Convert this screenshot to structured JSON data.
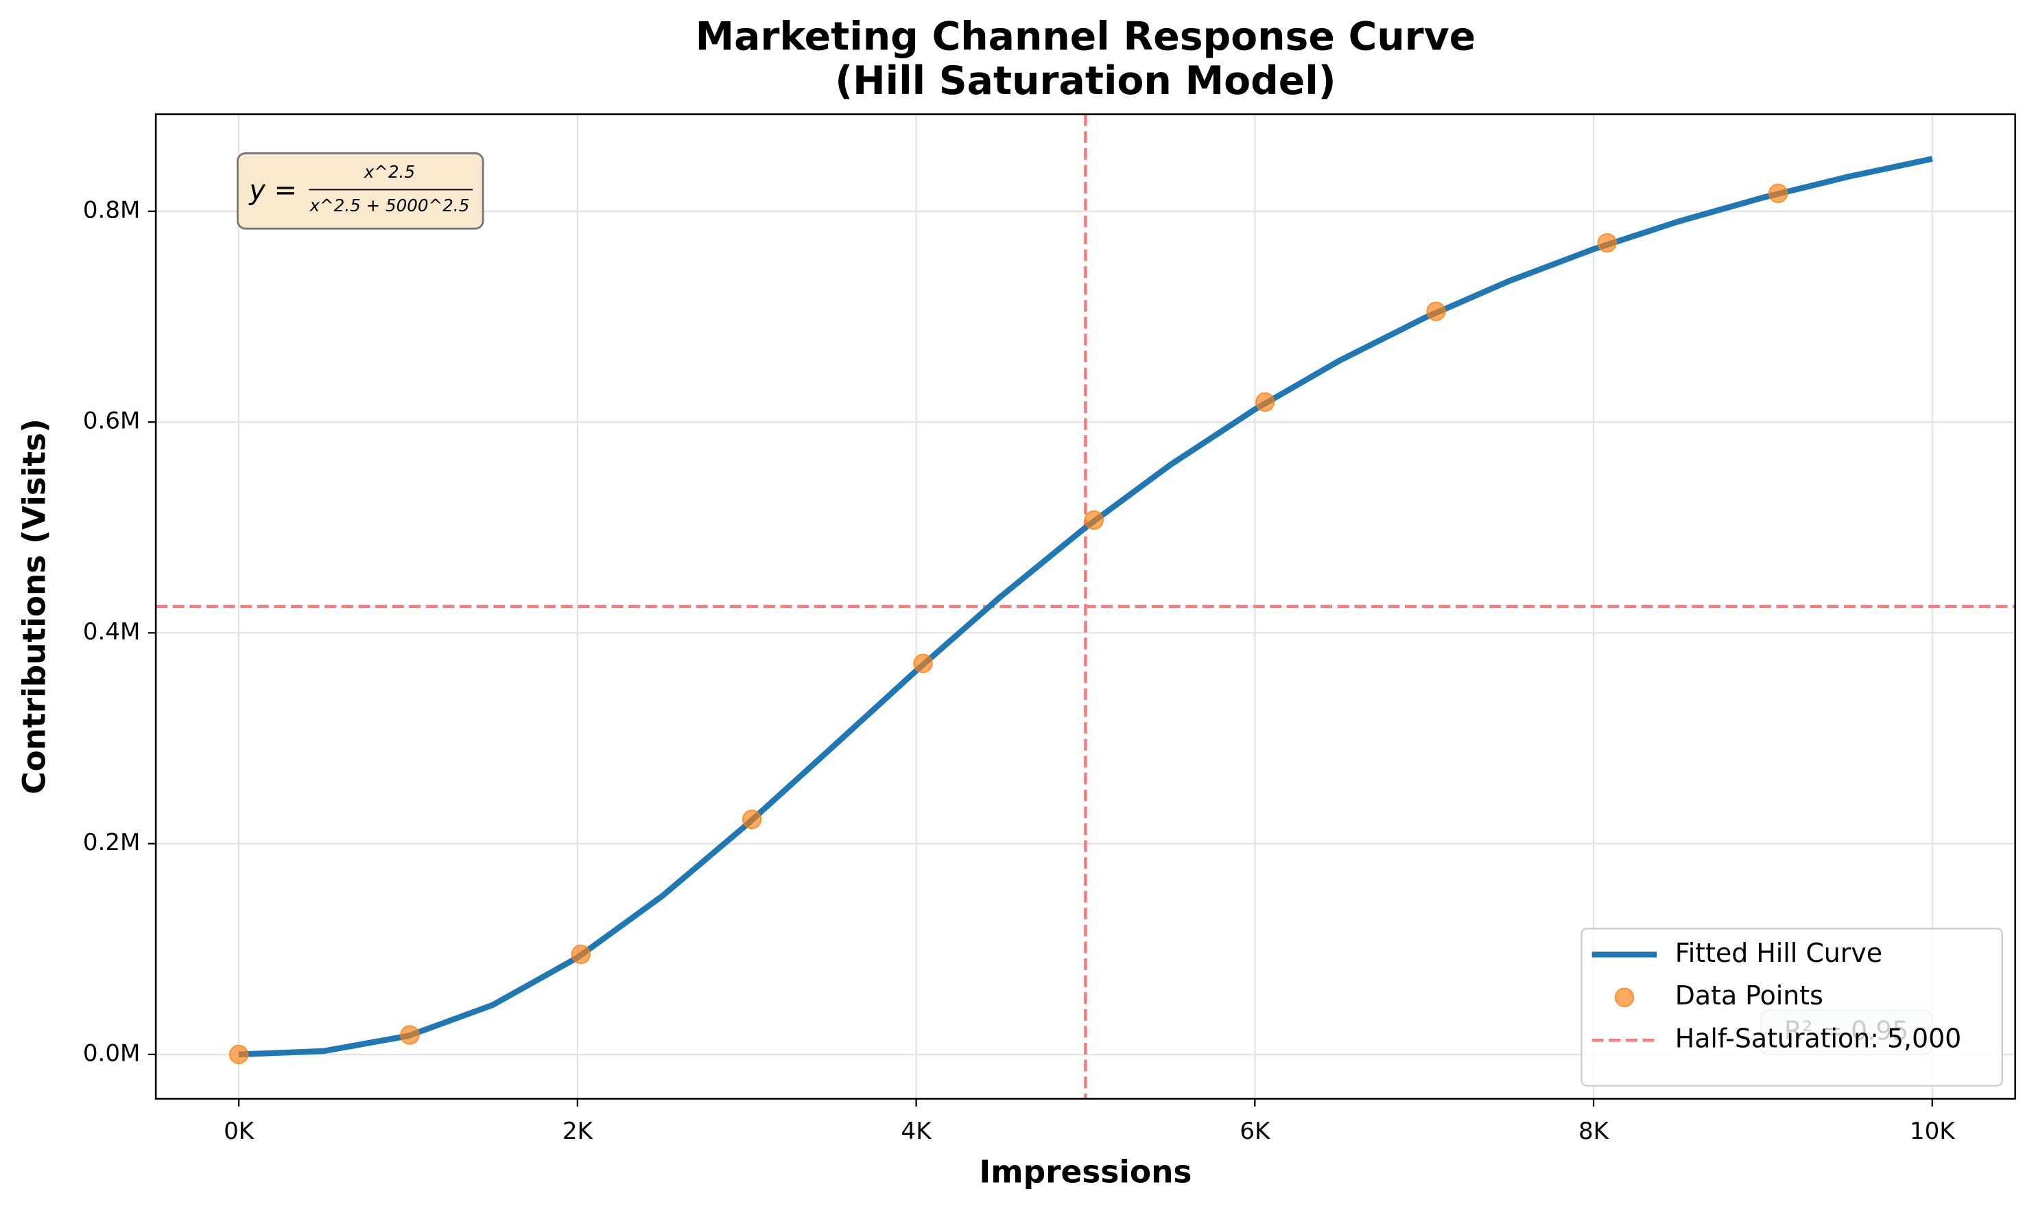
{
  "chart_data": {
    "type": "line",
    "title": [
      "Marketing Channel Response Curve",
      "(Hill Saturation Model)"
    ],
    "x_label": "Impressions",
    "y_label": "Contributions (Visits)",
    "xlim": [
      -490,
      10490
    ],
    "ylim": [
      -42000,
      892000
    ],
    "xticks": [
      {
        "value": 0,
        "label": "0K"
      },
      {
        "value": 2000,
        "label": "2K"
      },
      {
        "value": 4000,
        "label": "4K"
      },
      {
        "value": 6000,
        "label": "6K"
      },
      {
        "value": 8000,
        "label": "8K"
      },
      {
        "value": 10000,
        "label": "10K"
      }
    ],
    "yticks": [
      {
        "value": 0,
        "label": "0.0M"
      },
      {
        "value": 200000,
        "label": "0.2M"
      },
      {
        "value": 400000,
        "label": "0.4M"
      },
      {
        "value": 600000,
        "label": "0.6M"
      },
      {
        "value": 800000,
        "label": "0.8M"
      }
    ],
    "grid": true,
    "legend": "lower right",
    "series": [
      {
        "name": "Fitted Hill Curve",
        "type": "line",
        "color": "#1f77b4",
        "x": [
          0,
          500,
          1000,
          1500,
          2000,
          2500,
          3000,
          3500,
          4000,
          4500,
          5000,
          5500,
          6000,
          6500,
          7000,
          7500,
          8000,
          8500,
          9000,
          9500,
          10000
        ],
        "values": [
          0,
          3152,
          17575,
          46979,
          91894,
          150221,
          218052,
          290762,
          364044,
          434526,
          500000,
          559306,
          612019,
          658343,
          698717,
          733737,
          764049,
          790275,
          812976,
          832666,
          849779
        ]
      },
      {
        "name": "Data Points",
        "type": "scatter",
        "color": "#ff7f0e",
        "x": [
          0,
          1010,
          2020,
          3030,
          4040,
          5050,
          6060,
          7070,
          8080,
          9090
        ],
        "values": [
          0,
          18500,
          95000,
          223000,
          371000,
          507000,
          619000,
          705000,
          770000,
          817000
        ]
      }
    ],
    "vlines": [
      {
        "name": "Half-Saturation: 5,000",
        "value": 5000,
        "color": "#f08080"
      }
    ],
    "hlines": [
      {
        "value": 425000,
        "color": "#f08080"
      }
    ],
    "formula": {
      "lhs": "y =",
      "numerator": "x^2.5",
      "denominator": "x^2.5 + 5000^2.5"
    },
    "r_squared": "R² = 0.95"
  }
}
